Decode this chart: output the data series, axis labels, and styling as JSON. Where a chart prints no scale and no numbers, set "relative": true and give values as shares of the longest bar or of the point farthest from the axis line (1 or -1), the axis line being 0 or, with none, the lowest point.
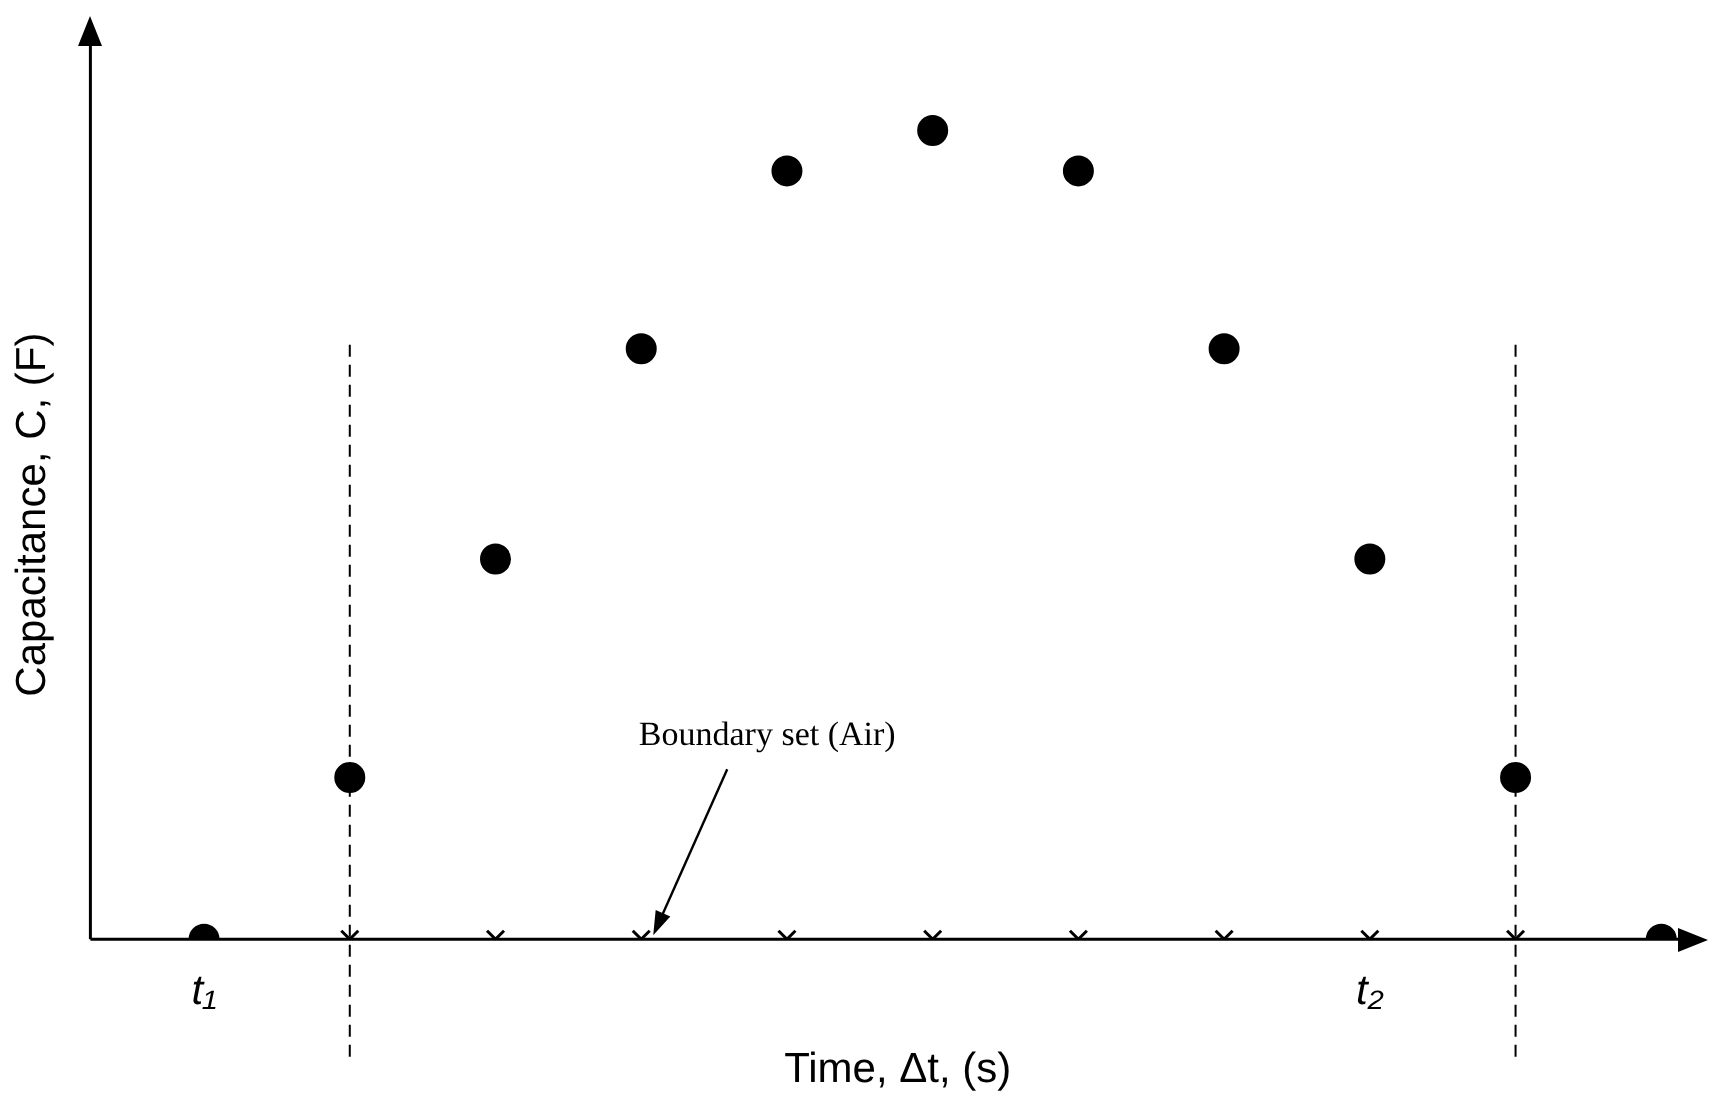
{
  "chart_data": {
    "type": "scatter",
    "relative": true,
    "xlabel": "Time, Δt, (s)",
    "ylabel": "Capacitance, C, (F)",
    "categories": [
      "t₁",
      null,
      null,
      null,
      null,
      null,
      null,
      null,
      "t₂",
      null,
      null
    ],
    "series": [
      {
        "color": "#000000",
        "marker": "circle",
        "values": [
          0,
          0.2,
          0.47,
          0.73,
          0.95,
          1,
          0.95,
          0.73,
          0.47,
          0.2,
          0
        ]
      },
      {
        "color": "#000000",
        "marker": "cross",
        "values": [
          null,
          0,
          0,
          0,
          0,
          0,
          0,
          0,
          0,
          0,
          null
        ]
      }
    ],
    "annotations": [
      "Boundary set (Air)"
    ],
    "legend": false
  }
}
